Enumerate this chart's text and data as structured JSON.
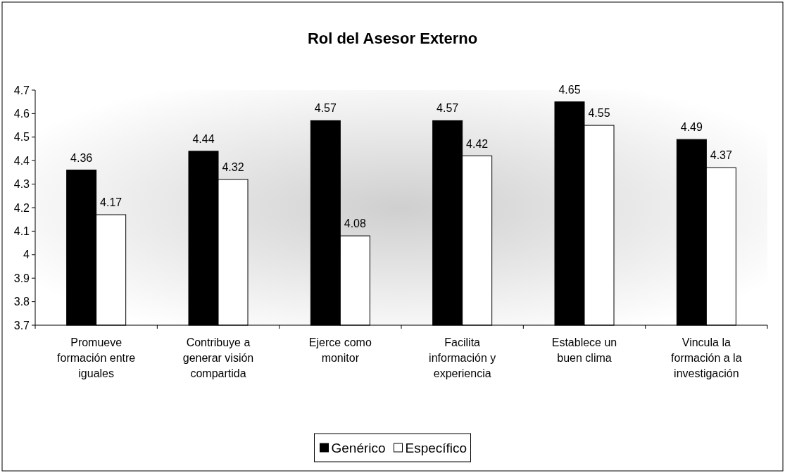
{
  "chart_data": {
    "type": "bar",
    "title": "Rol del Asesor Externo",
    "categories": [
      "Promueve formación entre iguales",
      "Contribuye a generar visión compartida",
      "Ejerce como monitor",
      "Facilita información y experiencia",
      "Establece un buen clima",
      "Vincula la formación a la investigación"
    ],
    "series": [
      {
        "name": "Genérico",
        "color": "#000000",
        "values": [
          4.36,
          4.44,
          4.57,
          4.57,
          4.65,
          4.49
        ]
      },
      {
        "name": "Específico",
        "color": "#ffffff",
        "values": [
          4.17,
          4.32,
          4.08,
          4.42,
          4.55,
          4.37
        ]
      }
    ],
    "ylim": [
      3.7,
      4.7
    ],
    "yticks": [
      3.7,
      3.8,
      3.9,
      4,
      4.1,
      4.2,
      4.3,
      4.4,
      4.5,
      4.6,
      4.7
    ],
    "data_labels": true,
    "legend": "bottom",
    "grid": false
  }
}
